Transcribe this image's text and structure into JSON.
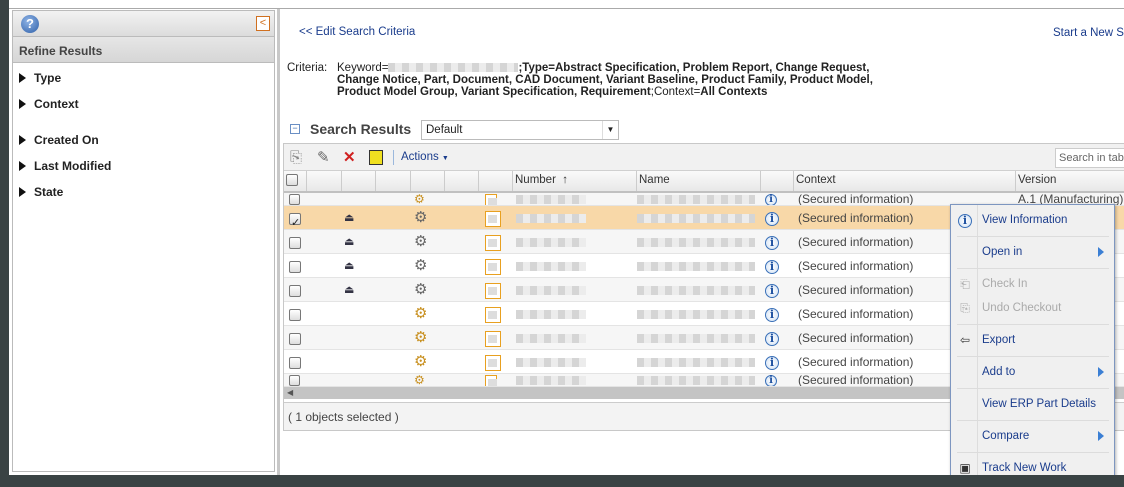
{
  "left_panel": {
    "title": "Refine Results",
    "facets": [
      "Type",
      "Context",
      "Created On",
      "Last Modified",
      "State"
    ]
  },
  "links": {
    "edit_criteria": "<< Edit Search Criteria",
    "new_search": "Start a New S"
  },
  "criteria": {
    "label": "Criteria:",
    "keyword_label": "Keyword=",
    "type_part": ";Type=Abstract Specification, Problem Report, Change Request, Change Notice, Part, Document, CAD Document, Variant Baseline, Product Family, Product Model, Product Model Group, Variant Specification, Requirement",
    "context_part": ";Context=",
    "context_value": "All Contexts"
  },
  "search_results": {
    "title": "Search Results",
    "view": "Default",
    "actions_label": "Actions",
    "search_placeholder": "Search in tab"
  },
  "table": {
    "columns": [
      "Number",
      "Name",
      "Context",
      "Version"
    ],
    "sort_indicator": "↑",
    "rows": [
      {
        "checked": false,
        "checkout": false,
        "context": "(Secured information)",
        "version": "A.1 (Manufacturing)",
        "selected": false
      },
      {
        "checked": true,
        "checkout": true,
        "context": "(Secured information)",
        "version": "",
        "selected": true
      },
      {
        "checked": false,
        "checkout": true,
        "context": "(Secured information)",
        "version": "",
        "selected": false
      },
      {
        "checked": false,
        "checkout": true,
        "context": "(Secured information)",
        "version": "",
        "selected": false
      },
      {
        "checked": false,
        "checkout": true,
        "context": "(Secured information)",
        "version": "",
        "selected": false
      },
      {
        "checked": false,
        "checkout": false,
        "context": "(Secured information)",
        "version": "",
        "selected": false
      },
      {
        "checked": false,
        "checkout": false,
        "context": "(Secured information)",
        "version": "",
        "selected": false
      },
      {
        "checked": false,
        "checkout": false,
        "context": "(Secured information)",
        "version": "",
        "selected": false
      },
      {
        "checked": false,
        "checkout": false,
        "context": "(Secured information)",
        "version": "",
        "selected": false
      }
    ]
  },
  "status": "( 1 objects selected )",
  "context_menu": {
    "items": [
      {
        "label": "View Information",
        "icon": "info-icon",
        "enabled": true,
        "submenu": false
      },
      {
        "label": "Open in",
        "icon": "",
        "enabled": true,
        "submenu": true
      },
      {
        "label": "Check In",
        "icon": "check-in-icon",
        "enabled": false,
        "submenu": false
      },
      {
        "label": "Undo Checkout",
        "icon": "undo-checkout-icon",
        "enabled": false,
        "submenu": false
      },
      {
        "label": "Export",
        "icon": "export-icon",
        "enabled": true,
        "submenu": false
      },
      {
        "label": "Add to",
        "icon": "",
        "enabled": true,
        "submenu": true
      },
      {
        "label": "View ERP Part Details",
        "icon": "",
        "enabled": true,
        "submenu": false
      },
      {
        "label": "Compare",
        "icon": "",
        "enabled": true,
        "submenu": true
      },
      {
        "label": "Track New Work",
        "icon": "track-work-icon",
        "enabled": true,
        "submenu": false
      }
    ]
  },
  "colors": {
    "selected_row": "#f8d8a8",
    "link": "#1a3c8c",
    "menu_border": "#7d96c0"
  }
}
